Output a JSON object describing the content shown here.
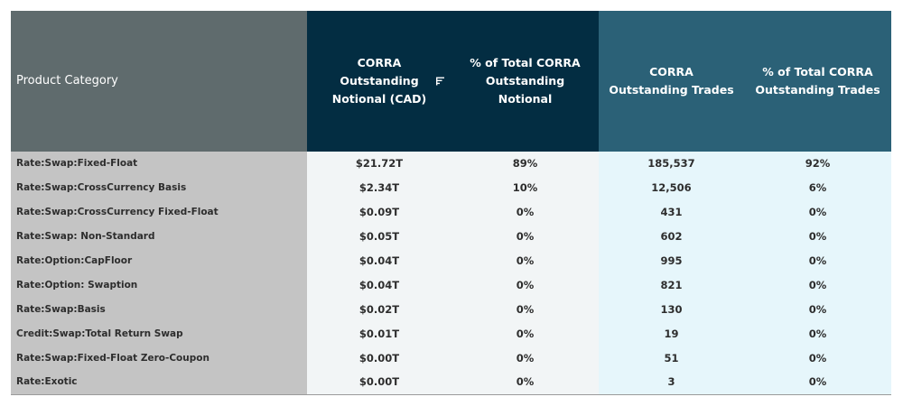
{
  "chart_data": {
    "type": "table",
    "columns": [
      "Product Category",
      "CORRA Outstanding Notional (CAD)",
      "% of Total CORRA Outstanding Notional",
      "CORRA Outstanding Trades",
      "% of Total CORRA Outstanding Trades"
    ],
    "header": {
      "cat": "Product Category",
      "c1": "CORRA Outstanding Notional (CAD)",
      "c2": "% of Total CORRA Outstanding Notional",
      "c3": "CORRA Outstanding Trades",
      "c4": "% of Total CORRA Outstanding Trades"
    },
    "rows": [
      {
        "cat": "Rate:Swap:Fixed-Float",
        "notional": "$21.72T",
        "notional_pct": "89%",
        "trades": "185,537",
        "trades_pct": "92%"
      },
      {
        "cat": "Rate:Swap:CrossCurrency Basis",
        "notional": "$2.34T",
        "notional_pct": "10%",
        "trades": "12,506",
        "trades_pct": "6%"
      },
      {
        "cat": "Rate:Swap:CrossCurrency Fixed-Float",
        "notional": "$0.09T",
        "notional_pct": "0%",
        "trades": "431",
        "trades_pct": "0%"
      },
      {
        "cat": "Rate:Swap: Non-Standard",
        "notional": "$0.05T",
        "notional_pct": "0%",
        "trades": "602",
        "trades_pct": "0%"
      },
      {
        "cat": "Rate:Option:CapFloor",
        "notional": "$0.04T",
        "notional_pct": "0%",
        "trades": "995",
        "trades_pct": "0%"
      },
      {
        "cat": "Rate:Option: Swaption",
        "notional": "$0.04T",
        "notional_pct": "0%",
        "trades": "821",
        "trades_pct": "0%"
      },
      {
        "cat": "Rate:Swap:Basis",
        "notional": "$0.02T",
        "notional_pct": "0%",
        "trades": "130",
        "trades_pct": "0%"
      },
      {
        "cat": "Credit:Swap:Total Return Swap",
        "notional": "$0.01T",
        "notional_pct": "0%",
        "trades": "19",
        "trades_pct": "0%"
      },
      {
        "cat": "Rate:Swap:Fixed-Float Zero-Coupon",
        "notional": "$0.00T",
        "notional_pct": "0%",
        "trades": "51",
        "trades_pct": "0%"
      },
      {
        "cat": "Rate:Exotic",
        "notional": "$0.00T",
        "notional_pct": "0%",
        "trades": "3",
        "trades_pct": "0%"
      }
    ]
  },
  "icons": {
    "sort": "sort-icon"
  },
  "colors": {
    "category_header": "#5f6b6d",
    "notional_header": "#032d42",
    "trades_header": "#2b6177",
    "category_cells": "#c4c4c4",
    "notional_cells": "#f2f5f6",
    "trades_cells": "#e6f6fb"
  }
}
